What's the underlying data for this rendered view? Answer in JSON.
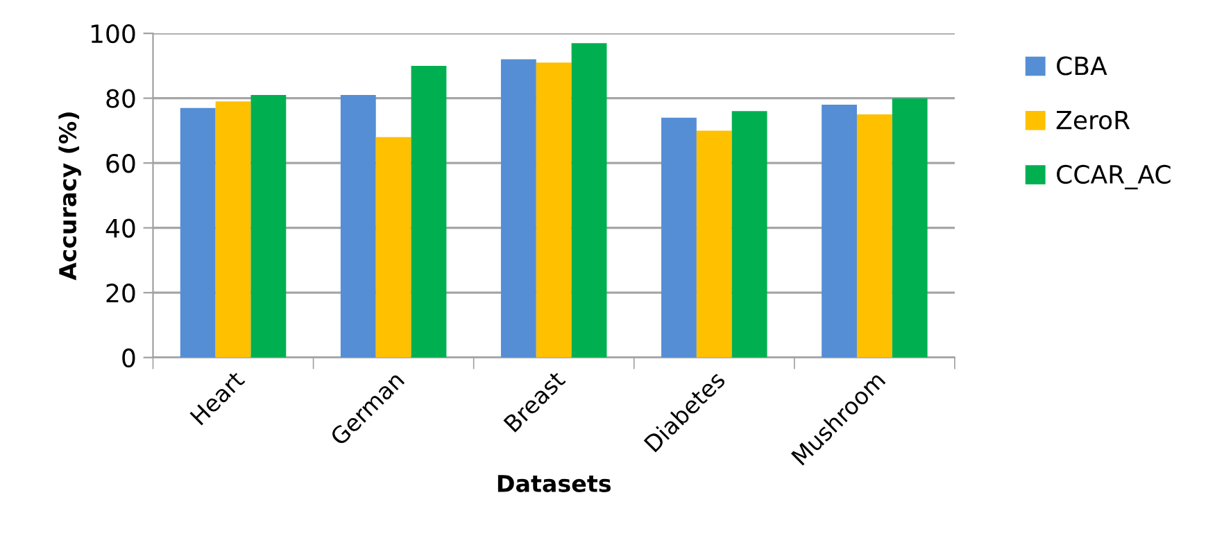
{
  "chart_data": {
    "type": "bar",
    "xlabel": "Datasets",
    "ylabel": "Accuracy (%)",
    "categories": [
      "Heart",
      "German",
      "Breast",
      "Diabetes",
      "Mushroom"
    ],
    "series": [
      {
        "name": "CBA",
        "color": "#558ed5",
        "values": [
          77,
          81,
          92,
          74,
          78
        ]
      },
      {
        "name": "ZeroR",
        "color": "#ffc000",
        "values": [
          79,
          68,
          91,
          70,
          75
        ]
      },
      {
        "name": "CCAR_AC",
        "color": "#00b050",
        "values": [
          81,
          90,
          97,
          76,
          80
        ]
      }
    ],
    "ylim": [
      0,
      100
    ],
    "yticks": [
      0,
      20,
      40,
      60,
      80,
      100
    ],
    "grid": "y",
    "legend": "top right"
  }
}
